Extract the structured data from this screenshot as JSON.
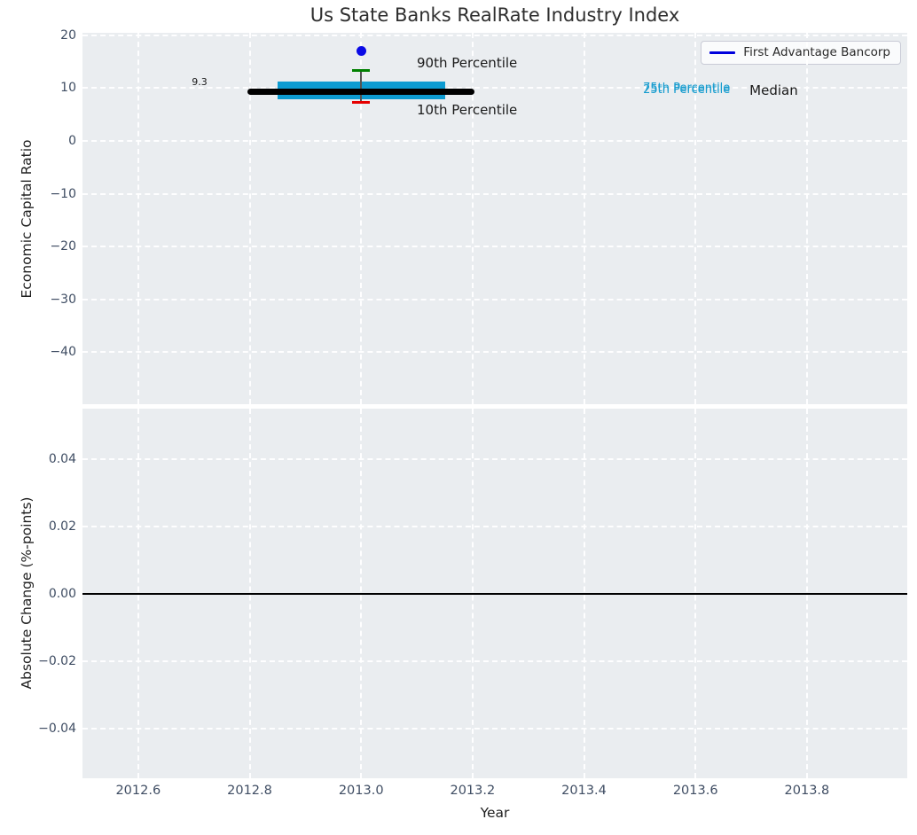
{
  "title": "Us State Banks RealRate Industry Index",
  "legend": {
    "label": "First Advantage Bancorp",
    "line_color": "#0000dd"
  },
  "colors": {
    "plot_bg": "#eaedf0",
    "grid": "#ffffff",
    "tick_label": "#3f4d63",
    "title": "#2e2e2e",
    "box_fill": "#0d9bd1",
    "median_line": "#000000",
    "p90_cap": "#008000",
    "p10_cap": "#e60000",
    "company_point": "#0a0ae6",
    "whisker": "#555555",
    "zero_line": "#000000"
  },
  "x_axis": {
    "label": "Year",
    "ticks": [
      2012.6,
      2012.8,
      2013.0,
      2013.2,
      2013.4,
      2013.6,
      2013.8
    ],
    "tick_labels": [
      "2012.6",
      "2012.8",
      "2013.0",
      "2013.2",
      "2013.4",
      "2013.6",
      "2013.8"
    ],
    "xlim": [
      2012.5,
      2013.98
    ]
  },
  "chart_data": [
    {
      "id": "economic-capital-ratio",
      "type": "box",
      "title": "Us State Banks RealRate Industry Index",
      "ylabel": "Economic Capital Ratio",
      "yticks": [
        20,
        10,
        0,
        -10,
        -20,
        -30,
        -40
      ],
      "ytick_labels": [
        "20",
        "10",
        "0",
        "−10",
        "−20",
        "−30",
        "−40"
      ],
      "ylim": [
        -49.9,
        20.5
      ],
      "xlim": [
        2012.5,
        2013.98
      ],
      "grid": true,
      "legend_position": "upper right",
      "box": {
        "x": 2013.0,
        "median": 9.3,
        "p25": 7.9,
        "p75": 11.2,
        "p10": 7.3,
        "p90": 13.4,
        "median_span": [
          2012.796,
          2013.203
        ],
        "box_span": [
          2012.85,
          2013.151
        ],
        "cap_halfwidth": 0.016
      },
      "company_point": {
        "label": "First Advantage Bancorp",
        "x": 2013.0,
        "y": 17.1
      },
      "annotations": [
        {
          "text": "9.3",
          "x": 2012.71,
          "y": 11.1,
          "color": "#1a1a1a",
          "size": 11,
          "anchor": "middle"
        },
        {
          "text": "90th Percentile",
          "x": 2013.1,
          "y": 14.8,
          "color": "#1a1a1a",
          "size": 15,
          "anchor": "start"
        },
        {
          "text": "10th Percentile",
          "x": 2013.1,
          "y": 5.9,
          "color": "#1a1a1a",
          "size": 15,
          "anchor": "start"
        },
        {
          "text": "75th Percentile",
          "x": 2013.506,
          "y": 9.85,
          "color": "#149bce",
          "size": 13,
          "anchor": "start"
        },
        {
          "text": "25th Percentile",
          "x": 2013.506,
          "y": 9.5,
          "color": "#149bce",
          "size": 13,
          "anchor": "start"
        },
        {
          "text": "Median",
          "x": 2013.697,
          "y": 9.65,
          "color": "#1a1a1a",
          "size": 15,
          "anchor": "start"
        }
      ]
    },
    {
      "id": "absolute-change",
      "type": "line",
      "ylabel": "Absolute Change (%-points)",
      "yticks": [
        0.04,
        0.02,
        0.0,
        -0.02,
        -0.04
      ],
      "ytick_labels": [
        "0.04",
        "0.02",
        "0.00",
        "−0.02",
        "−0.04"
      ],
      "ylim": [
        -0.0547,
        0.055
      ],
      "grid": true,
      "zero_line_y": 0.0
    }
  ]
}
